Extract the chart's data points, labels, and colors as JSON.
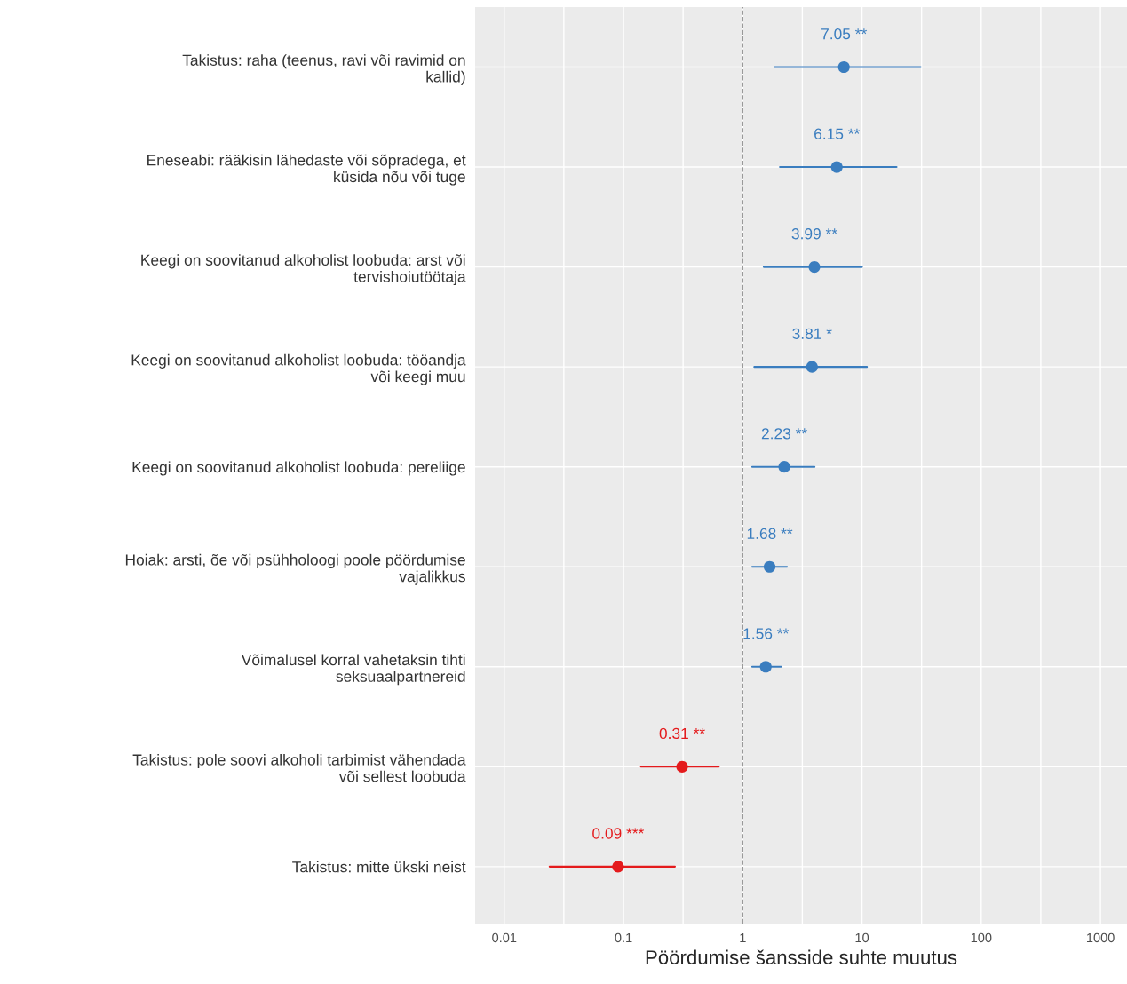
{
  "chart_data": {
    "type": "scatter",
    "orientation": "horizontal",
    "log": "x",
    "xlabel": "Pöördumise šansside suhte muutus",
    "categories": [
      "Takistus: raha (teenus, ravi või ravimid on\nkallid)",
      "Eneseabi: rääkisin lähedaste või sõpradega, et\nküsida nõu või tuge",
      "Keegi on soovitanud alkoholist loobuda: arst või\ntervishoiutöötaja",
      "Keegi on soovitanud alkoholist loobuda: tööandja\nvõi keegi muu",
      "Keegi on soovitanud alkoholist loobuda: pereliige",
      "Hoiak: arsti, õe või psühholoogi poole pöördumise\nvajalikkus",
      "Võimalusel korral vahetaksin tihti\nseksuaalpartnereid",
      "Takistus: pole soovi alkoholi tarbimist vähendada\nvõi sellest loobuda",
      "Takistus: mitte ükski neist"
    ],
    "values": [
      7.05,
      6.15,
      3.99,
      3.81,
      2.23,
      1.68,
      1.56,
      0.31,
      0.09
    ],
    "errors": [
      [
        1.85,
        31
      ],
      [
        2.05,
        19.5
      ],
      [
        1.5,
        10
      ],
      [
        1.25,
        11
      ],
      [
        1.2,
        4
      ],
      [
        1.2,
        2.35
      ],
      [
        1.2,
        2.1
      ],
      [
        0.14,
        0.63
      ],
      [
        0.024,
        0.27
      ]
    ],
    "value_labels": [
      "7.05 **",
      "6.15 **",
      "3.99 **",
      "3.81 *",
      "2.23 **",
      "1.68 **",
      "1.56 **",
      "0.31 **",
      "0.09 ***"
    ],
    "colors": [
      "#3a7dbf",
      "#3a7dbf",
      "#3a7dbf",
      "#3a7dbf",
      "#3a7dbf",
      "#3a7dbf",
      "#3a7dbf",
      "#e41a1c",
      "#e41a1c"
    ],
    "xlim": [
      0.0057,
      1670
    ],
    "xticks": [
      0.01,
      {
        "value": 0.0316,
        "label": null
      },
      0.1,
      {
        "value": 0.316,
        "label": null
      },
      1,
      {
        "value": 3.16,
        "label": null
      },
      10,
      {
        "value": 31.6,
        "label": null
      },
      100,
      {
        "value": 316,
        "label": null
      },
      1000
    ],
    "ref_lines": [
      {
        "axis": "x",
        "value": 1,
        "color": "#999999",
        "line_style": "dashed"
      }
    ],
    "grid": true,
    "marker": "circle",
    "legend": false
  }
}
